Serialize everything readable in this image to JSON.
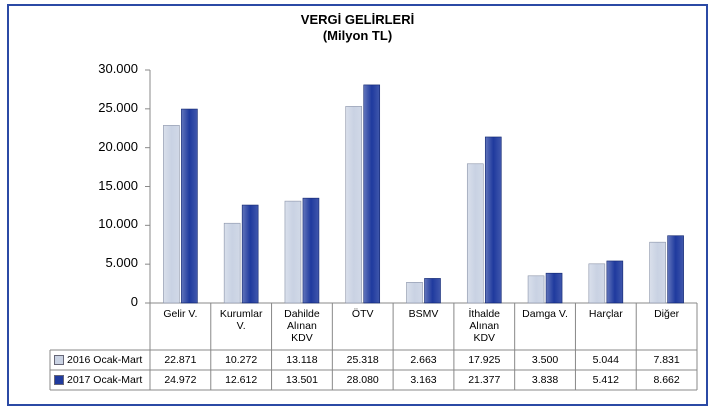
{
  "chart_data": {
    "type": "bar",
    "title": "VERGİ GELİRLERİ",
    "subtitle": "(Milyon TL)",
    "categories": [
      "Gelir V.",
      "Kurumlar V.",
      "Dahilde Alınan KDV",
      "ÖTV",
      "BSMV",
      "İthalde Alınan KDV",
      "Damga V.",
      "Harçlar",
      "Diğer"
    ],
    "series": [
      {
        "name": "2016 Ocak-Mart",
        "color": "#c9d2e3",
        "values": [
          22871,
          10272,
          13118,
          25318,
          2663,
          17925,
          3500,
          5044,
          7831
        ],
        "value_labels": [
          "22.871",
          "10.272",
          "13.118",
          "25.318",
          "2.663",
          "17.925",
          "3.500",
          "5.044",
          "7.831"
        ]
      },
      {
        "name": "2017 Ocak-Mart",
        "color": "#1f3a9e",
        "values": [
          24972,
          12612,
          13501,
          28080,
          3163,
          21377,
          3838,
          5412,
          8662
        ],
        "value_labels": [
          "24.972",
          "12.612",
          "13.501",
          "28.080",
          "3.163",
          "21.377",
          "3.838",
          "5.412",
          "8.662"
        ]
      }
    ],
    "ylim": [
      0,
      30000
    ],
    "yticks": [
      0,
      {
        "value": 5000,
        "label": "5.000"
      },
      {
        "value": 10000,
        "label": "10.000"
      },
      {
        "value": 15000,
        "label": "15.000"
      },
      {
        "value": 20000,
        "label": "20.000"
      },
      {
        "value": 25000,
        "label": "25.000"
      },
      {
        "value": 30000,
        "label": "30.000"
      }
    ],
    "grid": false,
    "legend": "table"
  }
}
